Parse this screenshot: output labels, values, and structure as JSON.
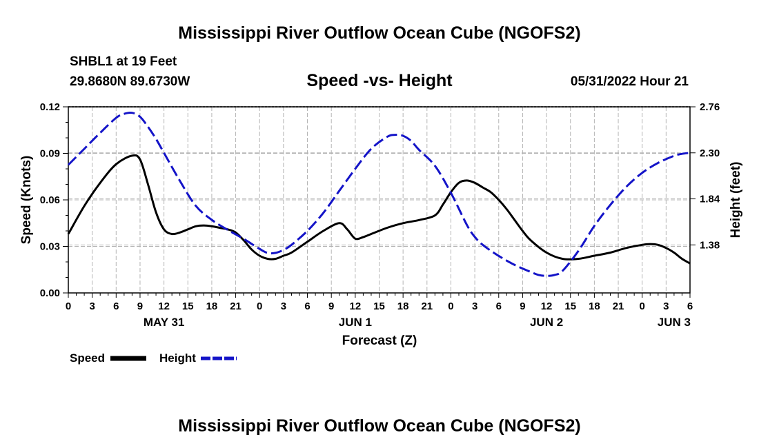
{
  "page": {
    "main_title": "Mississippi River Outflow Ocean Cube (NGOFS2)",
    "footer_title": "Mississippi River Outflow Ocean Cube (NGOFS2)",
    "station": "SHBL1 at 19 Feet",
    "location": "29.8680N  89.6730W",
    "chart_title": "Speed -vs- Height",
    "timestamp": "05/31/2022 Hour 21"
  },
  "chart_data": {
    "type": "line",
    "title": "Speed -vs- Height",
    "xlabel": "Forecast (Z)",
    "ylabel": "Speed (Knots)",
    "y2label": "Height (feet)",
    "grid": true,
    "x_unit": "hours since 2022-05-31 00Z",
    "xlim": [
      0,
      78
    ],
    "ylim": [
      0,
      0.12
    ],
    "y2lim": [
      0.9,
      2.76
    ],
    "x_ticks": [
      0,
      3,
      6,
      9,
      12,
      15,
      18,
      21,
      24,
      27,
      30,
      33,
      36,
      39,
      42,
      45,
      48,
      51,
      54,
      57,
      60,
      63,
      66,
      69,
      72,
      75,
      78
    ],
    "x_tick_labels": [
      "0",
      "3",
      "6",
      "9",
      "12",
      "15",
      "18",
      "21",
      "0",
      "3",
      "6",
      "9",
      "12",
      "15",
      "18",
      "21",
      "0",
      "3",
      "6",
      "9",
      "12",
      "15",
      "18",
      "21",
      "0",
      "3",
      "6"
    ],
    "y_ticks": [
      0,
      0.03,
      0.06,
      0.09,
      0.12
    ],
    "y_tick_labels": [
      "0.00",
      "0.03",
      "0.06",
      "0.09",
      "0.12"
    ],
    "y2_ticks": [
      1.38,
      1.84,
      2.3,
      2.76
    ],
    "y2_tick_labels": [
      "1.38",
      "1.84",
      "2.30",
      "2.76"
    ],
    "date_labels": [
      {
        "x": 12,
        "label": "MAY 31"
      },
      {
        "x": 36,
        "label": "JUN 1"
      },
      {
        "x": 60,
        "label": "JUN 2"
      },
      {
        "x": 76,
        "label": "JUN 3"
      }
    ],
    "legend": [
      {
        "name": "Speed",
        "color": "#000000",
        "dash": false
      },
      {
        "name": "Height",
        "color": "#1414c8",
        "dash": true
      }
    ],
    "series": [
      {
        "name": "Speed",
        "axis": "left",
        "color": "#000000",
        "x": [
          0,
          2,
          4,
          6,
          8,
          9,
          10,
          11,
          12,
          13,
          14,
          15,
          16,
          17,
          18,
          19,
          20,
          21,
          22,
          23,
          24,
          25,
          26,
          27,
          28,
          30,
          32,
          34,
          35,
          36,
          37,
          38,
          40,
          42,
          44,
          46,
          47,
          48,
          49,
          50,
          51,
          52,
          53,
          54,
          55,
          56,
          57,
          58,
          60,
          62,
          64,
          66,
          68,
          70,
          72,
          73,
          74,
          75,
          76,
          77,
          78
        ],
        "y": [
          0.038,
          0.056,
          0.071,
          0.083,
          0.0885,
          0.086,
          0.07,
          0.052,
          0.041,
          0.038,
          0.039,
          0.041,
          0.043,
          0.0435,
          0.043,
          0.042,
          0.041,
          0.039,
          0.034,
          0.028,
          0.024,
          0.022,
          0.022,
          0.024,
          0.026,
          0.033,
          0.04,
          0.045,
          0.041,
          0.035,
          0.036,
          0.038,
          0.042,
          0.045,
          0.047,
          0.05,
          0.057,
          0.065,
          0.071,
          0.0725,
          0.071,
          0.068,
          0.065,
          0.06,
          0.054,
          0.047,
          0.04,
          0.034,
          0.026,
          0.022,
          0.022,
          0.024,
          0.026,
          0.029,
          0.031,
          0.0315,
          0.031,
          0.029,
          0.026,
          0.022,
          0.019
        ]
      },
      {
        "name": "Height",
        "axis": "right",
        "color": "#1414c8",
        "x": [
          0,
          2,
          4,
          6,
          7,
          8,
          9,
          10,
          11,
          12,
          14,
          16,
          18,
          20,
          22,
          24,
          25,
          26,
          27,
          28,
          30,
          32,
          34,
          36,
          38,
          40,
          41,
          42,
          43,
          44,
          46,
          48,
          50,
          51,
          52,
          54,
          56,
          58,
          59,
          60,
          61,
          62,
          64,
          66,
          68,
          70,
          72,
          74,
          76,
          77,
          78
        ],
        "y": [
          2.18,
          2.34,
          2.5,
          2.65,
          2.69,
          2.7,
          2.66,
          2.56,
          2.44,
          2.3,
          2.02,
          1.77,
          1.63,
          1.53,
          1.44,
          1.34,
          1.3,
          1.3,
          1.33,
          1.38,
          1.52,
          1.7,
          1.92,
          2.14,
          2.34,
          2.46,
          2.48,
          2.47,
          2.42,
          2.33,
          2.17,
          1.9,
          1.58,
          1.46,
          1.38,
          1.27,
          1.18,
          1.11,
          1.08,
          1.07,
          1.08,
          1.12,
          1.32,
          1.57,
          1.78,
          1.96,
          2.1,
          2.2,
          2.27,
          2.29,
          2.3
        ]
      }
    ]
  }
}
